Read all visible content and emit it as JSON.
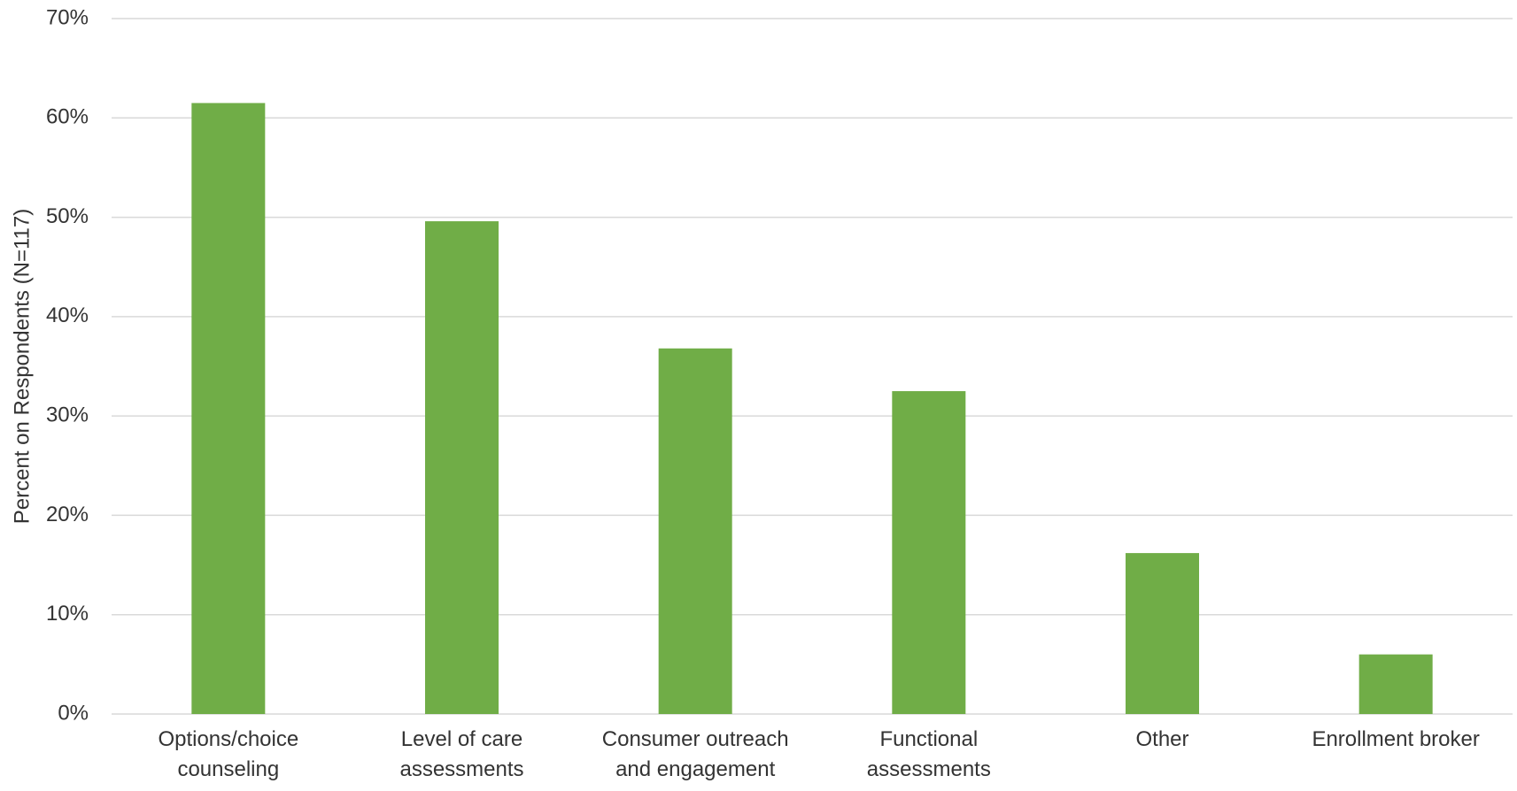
{
  "chart_data": {
    "type": "bar",
    "y_label": "Percent on Respondents (N=117)",
    "categories": [
      "Options/choice counseling",
      "Level of care assessments",
      "Consumer outreach and engagement",
      "Functional assessments",
      "Other",
      "Enrollment broker"
    ],
    "values": [
      61.5,
      49.6,
      36.8,
      32.5,
      16.2,
      6.0
    ],
    "color": "#70ad47",
    "ylim": [
      0,
      70
    ],
    "yticks": [
      {
        "value": 0,
        "label": "0%"
      },
      {
        "value": 10,
        "label": "10%"
      },
      {
        "value": 20,
        "label": "20%"
      },
      {
        "value": 30,
        "label": "30%"
      },
      {
        "value": 40,
        "label": "40%"
      },
      {
        "value": 50,
        "label": "50%"
      },
      {
        "value": 60,
        "label": "60%"
      },
      {
        "value": 70,
        "label": "70%"
      }
    ],
    "grid": true
  }
}
